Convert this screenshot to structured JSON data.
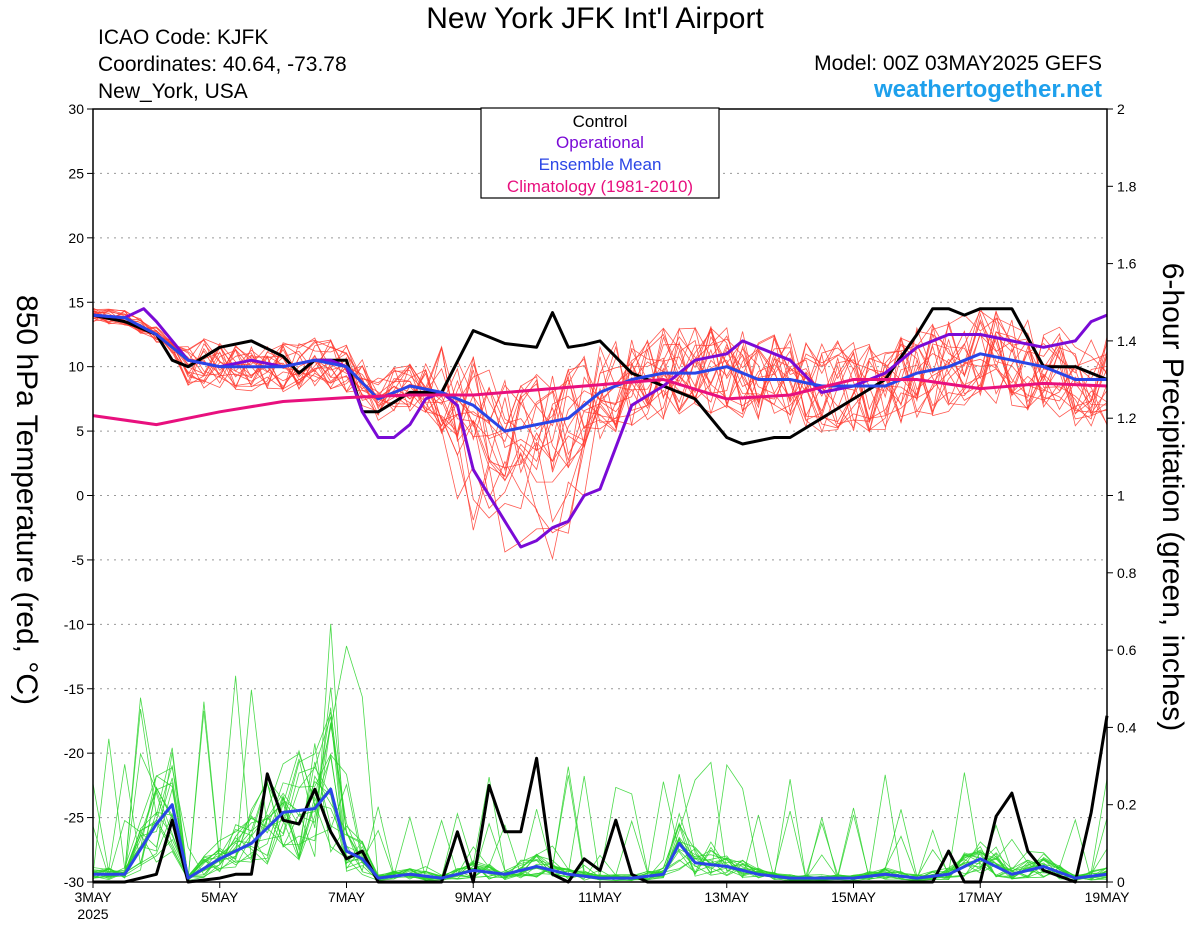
{
  "header": {
    "title": "New York JFK Int'l Airport",
    "icao": "ICAO Code: KJFK",
    "coordinates": "Coordinates: 40.64, -73.78",
    "location": "New_York, USA",
    "model": "Model: 00Z 03MAY2025 GEFS",
    "site": "weathertogether.net"
  },
  "colors": {
    "control": "#000000",
    "operational": "#7a0ad6",
    "ensemble_mean": "#2a45e6",
    "climatology": "#e8107e",
    "members_temp": "#ff3b30",
    "members_precip": "#2ad42a"
  },
  "chart_data": {
    "type": "line",
    "title": "New York JFK Int'l Airport",
    "ylabel_left": "850 hPa Temperature (red, °C)",
    "ylabel_right": "6-hour Precipitation (green, inches)",
    "x_ticks": [
      "3MAY",
      "5MAY",
      "7MAY",
      "9MAY",
      "11MAY",
      "13MAY",
      "15MAY",
      "17MAY",
      "19MAY"
    ],
    "x_year": "2025",
    "x_tick_days": [
      3,
      5,
      7,
      9,
      11,
      13,
      15,
      17,
      19
    ],
    "xlim_days": [
      3,
      19
    ],
    "ylim_left": [
      -30,
      30
    ],
    "yticks_left": [
      "30",
      "25",
      "20",
      "15",
      "10",
      "5",
      "0",
      "-5",
      "-10",
      "-15",
      "-20",
      "-25",
      "-30"
    ],
    "ylim_right": [
      0,
      2
    ],
    "yticks_right": [
      "2",
      "1.8",
      "1.6",
      "1.4",
      "1.2",
      "1",
      "0.8",
      "0.6",
      "0.4",
      "0.2",
      "0"
    ],
    "grid": true,
    "legend": {
      "position": "top-center",
      "entries": [
        "Control",
        "Operational",
        "Ensemble Mean",
        "Climatology (1981-2010)"
      ]
    },
    "temperature_series": [
      {
        "name": "Control",
        "x": [
          3,
          3.5,
          4,
          4.25,
          4.5,
          5,
          5.5,
          6,
          6.25,
          6.5,
          7,
          7.25,
          7.5,
          8,
          8.5,
          9,
          9.25,
          9.5,
          10,
          10.25,
          10.5,
          10.75,
          11,
          11.5,
          12,
          12.5,
          13,
          13.25,
          13.75,
          14,
          14.5,
          15,
          15.5,
          16,
          16.25,
          16.5,
          16.75,
          17,
          17.5,
          18,
          18.5,
          19
        ],
        "y": [
          14,
          13.5,
          12.5,
          10.5,
          10,
          11.5,
          12,
          10.8,
          9.5,
          10.5,
          10.5,
          6.5,
          6.5,
          8,
          8,
          12.8,
          12.3,
          11.8,
          11.5,
          14.2,
          11.5,
          11.7,
          12,
          9.5,
          8.5,
          7.5,
          4.5,
          4,
          4.5,
          4.5,
          6,
          7.5,
          9,
          12.5,
          14.5,
          14.5,
          14,
          14.5,
          14.5,
          10,
          10,
          9
        ]
      },
      {
        "name": "Operational",
        "x": [
          3,
          3.5,
          3.8,
          4,
          4.5,
          5,
          5.5,
          6,
          6.5,
          6.75,
          7,
          7.25,
          7.5,
          7.75,
          8,
          8.25,
          8.5,
          8.75,
          9,
          9.25,
          9.5,
          9.75,
          10,
          10.25,
          10.5,
          10.75,
          11,
          11.5,
          12,
          12.5,
          13,
          13.25,
          13.75,
          14,
          14.5,
          15,
          15.5,
          16,
          16.5,
          17,
          17.5,
          18,
          18.5,
          18.75,
          19
        ],
        "y": [
          14,
          13.8,
          14.5,
          13.5,
          10.5,
          10,
          10.5,
          10,
          10.5,
          10.5,
          10,
          6.5,
          4.5,
          4.5,
          5.5,
          7.5,
          8,
          7,
          2,
          0,
          -2,
          -4,
          -3.5,
          -2.5,
          -2,
          0,
          0.5,
          7,
          8.5,
          10.5,
          11,
          12,
          11,
          10.5,
          8,
          8.5,
          9.5,
          11.5,
          12.5,
          12.5,
          12,
          11.5,
          12,
          13.5,
          14
        ]
      },
      {
        "name": "Ensemble Mean",
        "x": [
          3,
          3.5,
          4,
          4.5,
          5,
          5.5,
          6,
          6.5,
          7,
          7.5,
          8,
          8.5,
          9,
          9.5,
          10,
          10.5,
          11,
          11.5,
          12,
          12.5,
          13,
          13.5,
          14,
          14.5,
          15,
          15.5,
          16,
          16.5,
          17,
          17.5,
          18,
          18.5,
          19
        ],
        "y": [
          14,
          13.8,
          12.5,
          10.5,
          10,
          10,
          10,
          10.5,
          10,
          7.5,
          8.5,
          8,
          7,
          5,
          5.5,
          6,
          8,
          9,
          9.5,
          9.5,
          10,
          9,
          9,
          8.5,
          8.5,
          8.5,
          9.5,
          10,
          11,
          10.5,
          10,
          9,
          9
        ]
      },
      {
        "name": "Climatology (1981-2010)",
        "x": [
          3,
          4,
          5,
          6,
          7,
          8,
          9,
          10,
          11,
          12,
          13,
          14,
          15,
          16,
          17,
          18,
          19
        ],
        "y": [
          6.2,
          5.5,
          6.5,
          7.3,
          7.6,
          7.8,
          7.8,
          8.2,
          8.6,
          9,
          7.5,
          7.8,
          9,
          9,
          8.3,
          8.7,
          8.5
        ]
      }
    ],
    "precipitation_series": [
      {
        "name": "Control",
        "x": [
          3,
          3.5,
          4,
          4.25,
          4.5,
          5,
          5.25,
          5.5,
          5.75,
          6,
          6.25,
          6.5,
          6.75,
          7,
          7.25,
          7.5,
          8,
          8.5,
          8.75,
          9,
          9.25,
          9.5,
          9.75,
          10,
          10.25,
          10.5,
          10.75,
          11,
          11.25,
          11.5,
          11.75,
          12,
          12.5,
          13,
          13.5,
          14,
          14.5,
          15,
          15.5,
          16,
          16.25,
          16.5,
          16.75,
          17,
          17.25,
          17.5,
          17.75,
          18,
          18.5,
          18.75,
          19
        ],
        "y": [
          0,
          0,
          0.02,
          0.16,
          0,
          0.01,
          0.02,
          0.02,
          0.28,
          0.16,
          0.15,
          0.24,
          0.13,
          0.06,
          0.08,
          0,
          0,
          0,
          0.13,
          0,
          0.25,
          0.13,
          0.13,
          0.32,
          0.02,
          0,
          0.06,
          0.03,
          0.16,
          0.02,
          0,
          0,
          0,
          0,
          0,
          0,
          0,
          0,
          0,
          0,
          0,
          0.08,
          0,
          0,
          0.17,
          0.23,
          0.08,
          0.03,
          0,
          0.18,
          0.43
        ]
      },
      {
        "name": "Ensemble Mean",
        "x": [
          3,
          3.5,
          4,
          4.25,
          4.5,
          5,
          5.5,
          6,
          6.5,
          6.75,
          7,
          7.25,
          7.5,
          8,
          8.5,
          9,
          9.5,
          10,
          10.5,
          11,
          11.5,
          12,
          12.25,
          12.5,
          13,
          13.5,
          14,
          14.5,
          15,
          15.5,
          16,
          16.5,
          17,
          17.5,
          18,
          18.5,
          19
        ],
        "y": [
          0.02,
          0.02,
          0.15,
          0.2,
          0.01,
          0.06,
          0.1,
          0.18,
          0.19,
          0.24,
          0.08,
          0.06,
          0.01,
          0.02,
          0.01,
          0.03,
          0.02,
          0.04,
          0.02,
          0.01,
          0.01,
          0.02,
          0.1,
          0.05,
          0.04,
          0.02,
          0.01,
          0.01,
          0.01,
          0.02,
          0.01,
          0.02,
          0.06,
          0.02,
          0.04,
          0.01,
          0.02
        ]
      }
    ]
  }
}
